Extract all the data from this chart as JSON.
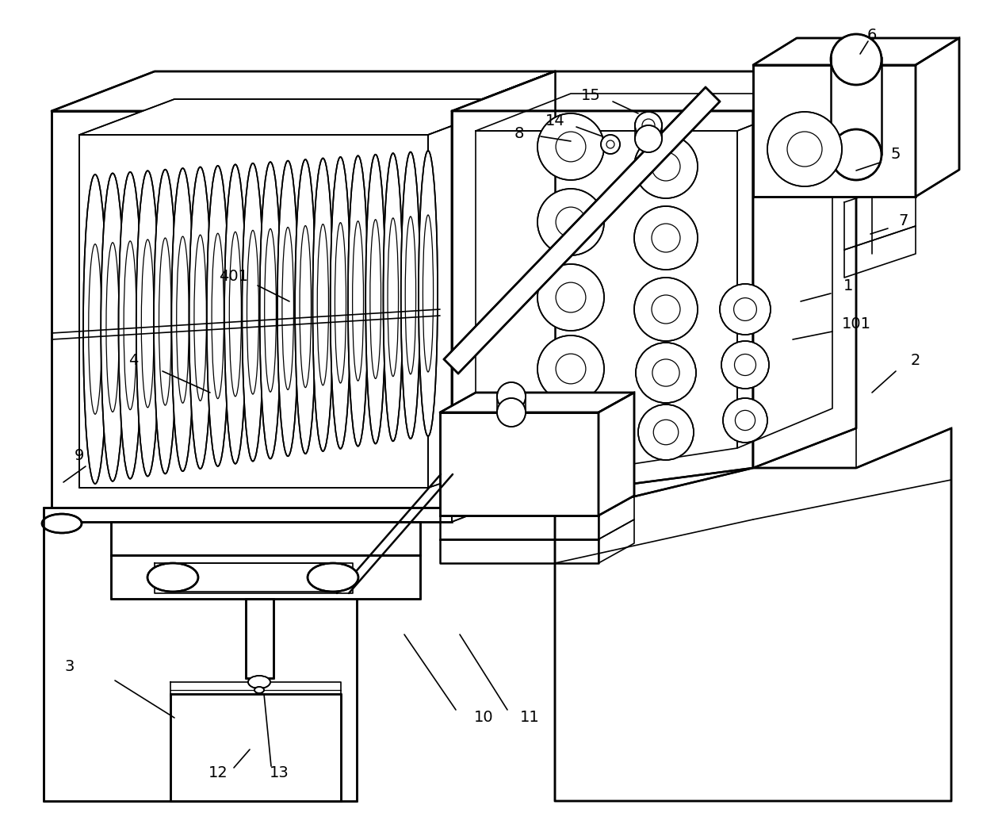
{
  "bg_color": "#ffffff",
  "lw": 1.8,
  "lwt": 1.2,
  "lwthin": 0.9,
  "fig_width": 12.4,
  "fig_height": 10.44,
  "dpi": 100
}
